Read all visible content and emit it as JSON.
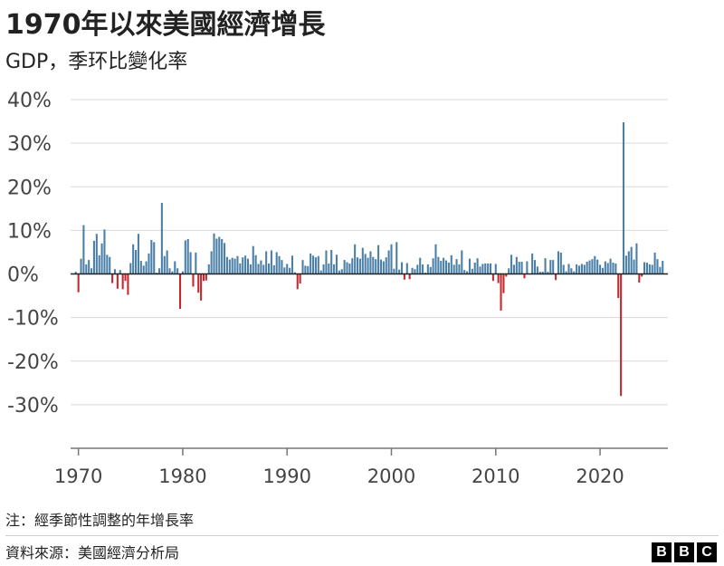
{
  "title": "1970年以來美國經濟增長",
  "subtitle": "GDP，季环比變化率",
  "note": "注：經季節性調整的年增長率",
  "source": "資料來源：美國經濟分析局",
  "logo": [
    "B",
    "B",
    "C"
  ],
  "colors": {
    "positive": "#4a7fa8",
    "negative": "#c2292e",
    "grid": "#d9d9d9",
    "zero_line": "#222222",
    "axis": "#777777"
  },
  "chart_data": {
    "type": "bar",
    "title": "1970年以來美國經濟增長",
    "subtitle": "GDP，季环比變化率",
    "ylim": [
      -40,
      40
    ],
    "yticks": [
      -30,
      -20,
      -10,
      0,
      10,
      20,
      30,
      40
    ],
    "ytick_labels": [
      "-30%",
      "-20%",
      "-10%",
      "0%",
      "10%",
      "20%",
      "30%",
      "40%"
    ],
    "xlim": [
      1969.25,
      2026.5
    ],
    "xticks": [
      1970,
      1980,
      1990,
      2000,
      2010,
      2020
    ],
    "xtick_labels": [
      "1970",
      "1980",
      "1990",
      "2000",
      "2010",
      "2020"
    ],
    "grid": true,
    "x_start": 1969.75,
    "x_step": 0.25,
    "values": [
      0.5,
      -4.2,
      3.5,
      11.2,
      2.2,
      3.2,
      1.3,
      7.6,
      9.2,
      4.3,
      7.0,
      10.2,
      4.4,
      3.9,
      -2.1,
      1.1,
      -3.4,
      0.9,
      -3.5,
      -1.6,
      -4.8,
      2.5,
      6.8,
      5.5,
      9.2,
      3.0,
      1.9,
      2.9,
      4.7,
      7.8,
      7.3,
      0.3,
      1.3,
      16.3,
      4.1,
      5.4,
      1.3,
      0.6,
      2.9,
      1.3,
      -8.0,
      0.6,
      7.7,
      8.0,
      5.0,
      -2.9,
      4.9,
      -4.3,
      -6.1,
      -1.6,
      -1.5,
      2.2,
      5.2,
      9.3,
      8.1,
      8.5,
      8.0,
      7.1,
      3.9,
      3.3,
      3.7,
      3.5,
      4.1,
      2.4,
      3.8,
      4.2,
      3.5,
      2.2,
      6.4,
      4.3,
      2.3,
      3.1,
      2.1,
      5.2,
      2.4,
      5.4,
      2.0,
      5.0,
      4.1,
      3.2,
      1.5,
      2.3,
      1.4,
      4.2,
      0.4,
      -3.5,
      -2.2,
      3.2,
      1.9,
      1.8,
      4.7,
      4.2,
      3.8,
      4.1,
      0.8,
      2.2,
      5.4,
      2.4,
      5.5,
      2.2,
      4.4,
      0.8,
      1.1,
      3.2,
      2.7,
      2.4,
      3.6,
      6.8,
      3.8,
      3.5,
      6.0,
      4.6,
      3.7,
      5.2,
      3.9,
      3.4,
      6.6,
      3.3,
      2.9,
      3.8,
      5.4,
      6.8,
      1.2,
      7.3,
      1.0,
      2.7,
      -1.3,
      2.5,
      -1.2,
      1.4,
      1.1,
      2.1,
      3.7,
      2.2,
      0.3,
      2.2,
      1.6,
      3.6,
      6.8,
      3.9,
      3.0,
      3.7,
      3.1,
      2.6,
      4.3,
      2.1,
      3.4,
      2.2,
      5.4,
      0.9,
      0.6,
      3.5,
      1.2,
      2.6,
      3.6,
      1.7,
      2.3,
      2.4,
      2.4,
      2.4,
      -1.6,
      2.3,
      -2.1,
      -8.4,
      -4.4,
      -0.6,
      1.3,
      4.4,
      2.1,
      3.9,
      2.8,
      2.8,
      -1.0,
      2.9,
      -0.1,
      4.7,
      3.2,
      1.7,
      0.5,
      0.5,
      3.6,
      0.5,
      3.2,
      3.2,
      -1.4,
      5.2,
      4.9,
      2.1,
      0.6,
      2.3,
      1.3,
      0.6,
      2.2,
      1.9,
      2.3,
      2.1,
      2.8,
      3.1,
      3.4,
      4.1,
      3.3,
      2.1,
      1.4,
      2.9,
      2.5,
      3.5,
      2.6,
      2.4,
      -5.5,
      -28.0,
      34.8,
      4.2,
      5.2,
      6.2,
      3.3,
      7.0,
      -2.0,
      -0.6,
      2.7,
      2.6,
      2.2,
      2.1,
      4.9,
      3.4,
      1.6,
      3.0
    ]
  }
}
